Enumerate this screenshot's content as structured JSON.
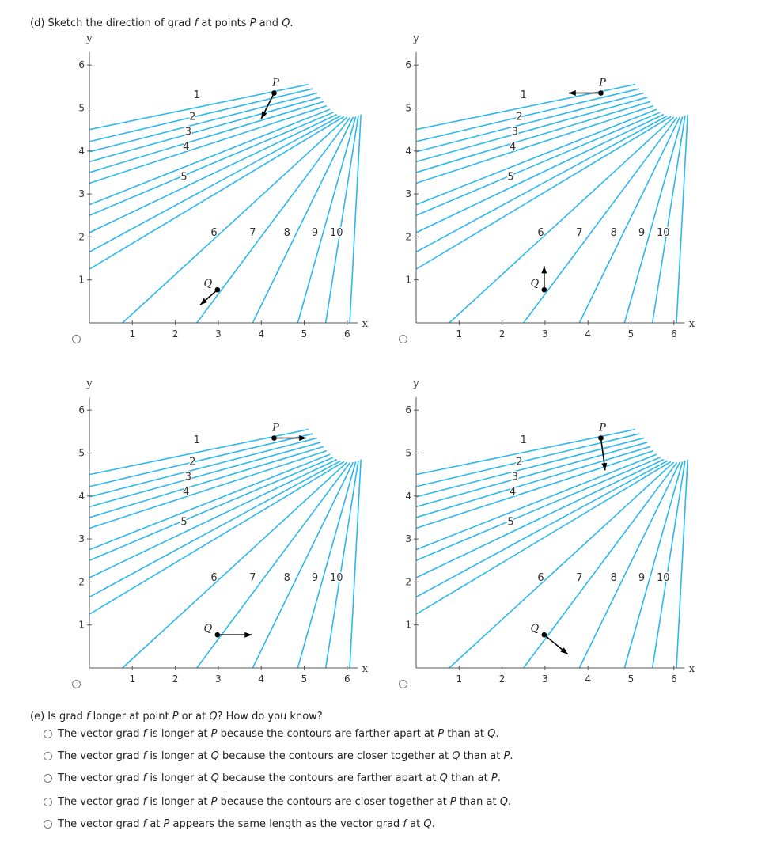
{
  "question_d": {
    "prefix": "(d) Sketch the direction of grad ",
    "f": "f",
    "suffix": " at points ",
    "P": "P",
    "and": " and ",
    "Q": "Q",
    "end": "."
  },
  "axis": {
    "xlabel": "x",
    "ylabel": "y",
    "xticks": [
      "1",
      "2",
      "3",
      "4",
      "5",
      "6"
    ],
    "yticks": [
      "1",
      "2",
      "3",
      "4",
      "5",
      "6"
    ]
  },
  "contour_labels": [
    "1",
    "2",
    "3",
    "4",
    "5",
    "6",
    "7",
    "8",
    "9",
    "10"
  ],
  "point_labels": {
    "P": "P",
    "Q": "Q"
  },
  "plots": [
    {
      "id": "top-left",
      "arrow_P": [
        -0.3,
        -0.6
      ],
      "arrow_Q": [
        -0.4,
        -0.35
      ]
    },
    {
      "id": "top-right",
      "arrow_P": [
        -0.75,
        0
      ],
      "arrow_Q": [
        0,
        0.55
      ]
    },
    {
      "id": "bottom-left",
      "arrow_P": [
        0.75,
        0
      ],
      "arrow_Q": [
        0.8,
        0
      ]
    },
    {
      "id": "bottom-right",
      "arrow_P": [
        0.1,
        -0.75
      ],
      "arrow_Q": [
        0.55,
        -0.45
      ]
    }
  ],
  "colors": {
    "contour": "#2bb8ee",
    "axis": "#555555",
    "arrow": "#000000"
  },
  "question_e": {
    "text_prefix": "(e) Is grad ",
    "f": "f",
    "text_suffix": " longer at point ",
    "P": "P",
    "or": " or at ",
    "Q": "Q",
    "end": "? How do you know?"
  },
  "options_e": [
    "The vector grad f is longer at P because the contours are farther apart at P than at Q.",
    "The vector grad f is longer at Q because the contours are closer together at Q than at P.",
    "The vector grad f is longer at Q because the contours are farther apart at Q than at P.",
    "The vector grad f is longer at P because the contours are closer together at P than at Q.",
    "The vector grad f at P appears the same length as the vector grad f at Q."
  ]
}
